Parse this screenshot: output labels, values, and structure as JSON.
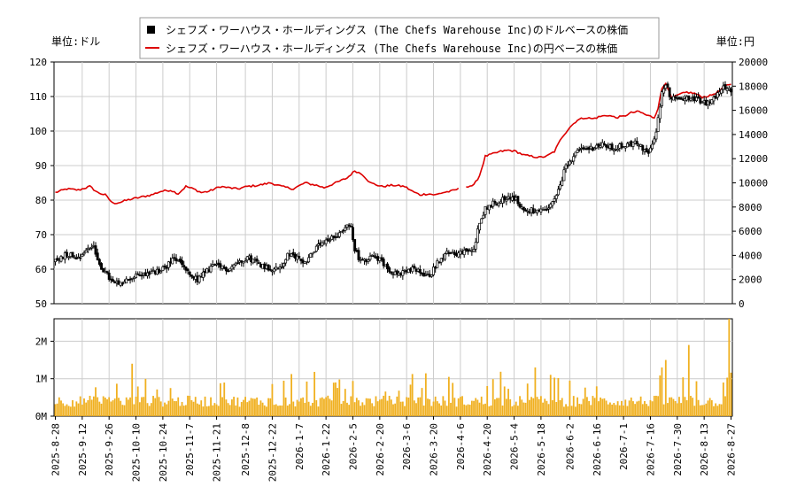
{
  "legend": {
    "usd_label": "シェフズ・ワーハウス・ホールディングス (The Chefs Warehouse Inc)のドルベースの株価",
    "jpy_label": "シェフズ・ワーハウス・ホールディングス (The Chefs Warehouse Inc)の円ベースの株価"
  },
  "colors": {
    "candle": "#000000",
    "jpy_line": "#dd0000",
    "volume": "#f0b020",
    "grid": "#cccccc"
  },
  "chart_data": {
    "type": "candlestick",
    "left_axis_label": "単位:ドル",
    "right_axis_label": "単位:円",
    "ylim_usd": [
      50,
      120
    ],
    "yticks_usd": [
      50,
      60,
      70,
      80,
      90,
      100,
      110,
      120
    ],
    "ylim_jpy": [
      0,
      20000
    ],
    "yticks_jpy": [
      0,
      2000,
      4000,
      6000,
      8000,
      10000,
      12000,
      14000,
      16000,
      18000,
      20000
    ],
    "volume_ylim": [
      0,
      2600000
    ],
    "volume_ticks": [
      {
        "value": 0,
        "label": "0M"
      },
      {
        "value": 1000000,
        "label": "1M"
      },
      {
        "value": 2000000,
        "label": "2M"
      }
    ],
    "x_tick_labels": [
      "2025-8-28",
      "2025-9-12",
      "2025-9-26",
      "2025-10-10",
      "2025-10-24",
      "2025-11-7",
      "2025-11-21",
      "2025-12-8",
      "2025-12-22",
      "2026-1-7",
      "2026-1-22",
      "2026-2-5",
      "2026-2-20",
      "2026-3-6",
      "2026-3-20",
      "2026-4-6",
      "2026-4-20",
      "2026-5-4",
      "2026-5-18",
      "2026-6-2",
      "2026-6-16",
      "2026-7-1",
      "2026-7-16",
      "2026-7-30",
      "2026-8-13",
      "2026-8-27"
    ],
    "usd_close_keypoints": [
      [
        0,
        62.5
      ],
      [
        6,
        64.5
      ],
      [
        12,
        63.5
      ],
      [
        17,
        66
      ],
      [
        20,
        67
      ],
      [
        22,
        62
      ],
      [
        26,
        59
      ],
      [
        30,
        56
      ],
      [
        34,
        55.5
      ],
      [
        38,
        57
      ],
      [
        44,
        58.5
      ],
      [
        50,
        59
      ],
      [
        55,
        59.5
      ],
      [
        58,
        61
      ],
      [
        62,
        63
      ],
      [
        66,
        61.5
      ],
      [
        70,
        58
      ],
      [
        74,
        57
      ],
      [
        78,
        59
      ],
      [
        82,
        61
      ],
      [
        86,
        60.5
      ],
      [
        90,
        60
      ],
      [
        95,
        62
      ],
      [
        100,
        63.5
      ],
      [
        105,
        62
      ],
      [
        110,
        60.5
      ],
      [
        115,
        60
      ],
      [
        118,
        61
      ],
      [
        121,
        64
      ],
      [
        126,
        63.5
      ],
      [
        130,
        62
      ],
      [
        134,
        65
      ],
      [
        138,
        67
      ],
      [
        142,
        68
      ],
      [
        147,
        70
      ],
      [
        152,
        72.5
      ],
      [
        154,
        72
      ],
      [
        156,
        66
      ],
      [
        158,
        63
      ],
      [
        162,
        62
      ],
      [
        166,
        64.5
      ],
      [
        170,
        62
      ],
      [
        174,
        60
      ],
      [
        178,
        58.5
      ],
      [
        182,
        59
      ],
      [
        186,
        60
      ],
      [
        190,
        59
      ],
      [
        194,
        58
      ],
      [
        196,
        59
      ],
      [
        198,
        61
      ],
      [
        202,
        64
      ],
      [
        206,
        65
      ],
      [
        210,
        64.5
      ],
      [
        214,
        65
      ],
      [
        218,
        65.5
      ],
      [
        221,
        74
      ],
      [
        224,
        77.5
      ],
      [
        228,
        79
      ],
      [
        232,
        80
      ],
      [
        236,
        81
      ],
      [
        240,
        80
      ],
      [
        244,
        77
      ],
      [
        248,
        77
      ],
      [
        252,
        76.5
      ],
      [
        256,
        77
      ],
      [
        260,
        80
      ],
      [
        263,
        84
      ],
      [
        266,
        90
      ],
      [
        270,
        93
      ],
      [
        274,
        94.5
      ],
      [
        278,
        95
      ],
      [
        282,
        95.5
      ],
      [
        286,
        96
      ],
      [
        290,
        95
      ],
      [
        294,
        95.5
      ],
      [
        298,
        96
      ],
      [
        302,
        96.5
      ],
      [
        306,
        95
      ],
      [
        309,
        93
      ],
      [
        313,
        100
      ],
      [
        316,
        111
      ],
      [
        318,
        114
      ],
      [
        320,
        110
      ],
      [
        324,
        109
      ],
      [
        328,
        110
      ],
      [
        332,
        109.5
      ],
      [
        336,
        108.5
      ],
      [
        340,
        108
      ],
      [
        344,
        110
      ],
      [
        348,
        113
      ],
      [
        352,
        112
      ]
    ],
    "jpy_close_keypoints": [
      [
        0,
        9200
      ],
      [
        6,
        9500
      ],
      [
        12,
        9400
      ],
      [
        18,
        9700
      ],
      [
        22,
        9200
      ],
      [
        26,
        9000
      ],
      [
        30,
        8300
      ],
      [
        34,
        8400
      ],
      [
        38,
        8600
      ],
      [
        44,
        8800
      ],
      [
        50,
        9000
      ],
      [
        55,
        9300
      ],
      [
        60,
        9400
      ],
      [
        64,
        9100
      ],
      [
        68,
        9700
      ],
      [
        72,
        9500
      ],
      [
        76,
        9200
      ],
      [
        80,
        9300
      ],
      [
        86,
        9700
      ],
      [
        90,
        9600
      ],
      [
        95,
        9500
      ],
      [
        100,
        9700
      ],
      [
        106,
        9800
      ],
      [
        112,
        10000
      ],
      [
        118,
        9700
      ],
      [
        124,
        9500
      ],
      [
        130,
        10000
      ],
      [
        136,
        9800
      ],
      [
        140,
        9600
      ],
      [
        146,
        10000
      ],
      [
        152,
        10400
      ],
      [
        156,
        11000
      ],
      [
        160,
        10700
      ],
      [
        164,
        10000
      ],
      [
        170,
        9700
      ],
      [
        176,
        9800
      ],
      [
        182,
        9700
      ],
      [
        186,
        9300
      ],
      [
        190,
        9000
      ],
      [
        194,
        9100
      ],
      [
        198,
        9000
      ],
      [
        202,
        9200
      ],
      [
        206,
        9300
      ],
      [
        210,
        9500
      ],
      [
        214,
        9700
      ],
      [
        218,
        9800
      ],
      [
        221,
        10600
      ],
      [
        224,
        12200
      ],
      [
        228,
        12400
      ],
      [
        232,
        12600
      ],
      [
        236,
        12700
      ],
      [
        240,
        12600
      ],
      [
        244,
        12300
      ],
      [
        248,
        12200
      ],
      [
        252,
        12100
      ],
      [
        256,
        12200
      ],
      [
        260,
        12600
      ],
      [
        264,
        13800
      ],
      [
        268,
        14600
      ],
      [
        272,
        15200
      ],
      [
        276,
        15400
      ],
      [
        280,
        15300
      ],
      [
        284,
        15500
      ],
      [
        288,
        15600
      ],
      [
        292,
        15400
      ],
      [
        296,
        15500
      ],
      [
        300,
        15800
      ],
      [
        304,
        15900
      ],
      [
        308,
        15600
      ],
      [
        312,
        15400
      ],
      [
        314,
        16200
      ],
      [
        316,
        17800
      ],
      [
        318,
        18300
      ],
      [
        321,
        17000
      ],
      [
        325,
        17300
      ],
      [
        329,
        17500
      ],
      [
        333,
        17400
      ],
      [
        337,
        17100
      ],
      [
        341,
        17200
      ],
      [
        345,
        17500
      ],
      [
        349,
        18000
      ],
      [
        352,
        18200
      ]
    ],
    "jpy_gap_range": [
      210,
      214
    ]
  }
}
